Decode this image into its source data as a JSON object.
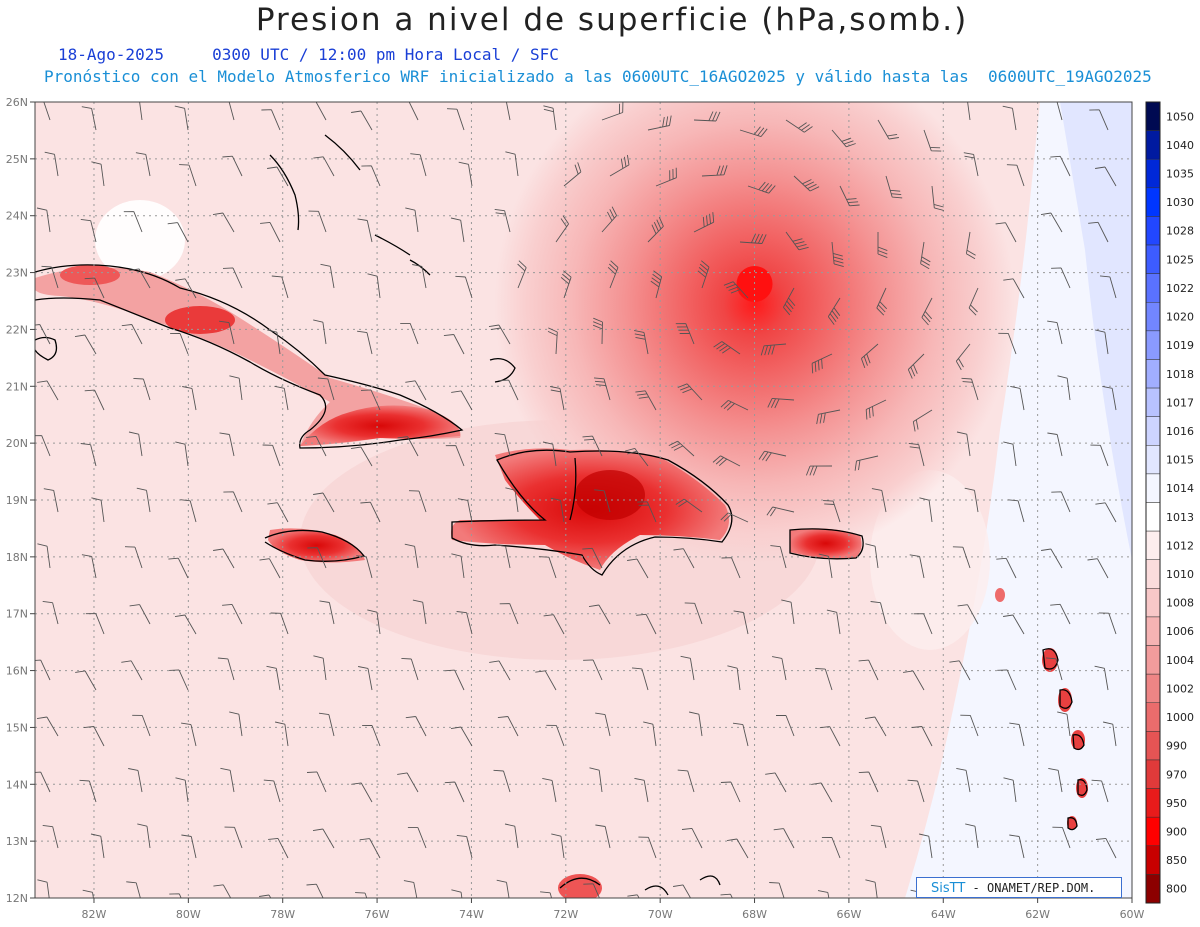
{
  "header": {
    "title": "Presion a nivel de superficie (hPa,somb.)",
    "date": "18-Ago-2025",
    "time_info": "0300 UTC / 12:00 pm Hora Local / SFC",
    "model_info": "Pronóstico con el Modelo Atmosferico WRF inicializado a las 0600UTC_16AGO2025 y válido hasta las  0600UTC_19AGO2025"
  },
  "map": {
    "lon_labels": [
      "82W",
      "80W",
      "78W",
      "76W",
      "74W",
      "72W",
      "70W",
      "68W",
      "66W",
      "64W",
      "62W",
      "60W"
    ],
    "lat_labels": [
      "26N",
      "25N",
      "24N",
      "23N",
      "22N",
      "21N",
      "20N",
      "19N",
      "18N",
      "17N",
      "16N",
      "15N",
      "14N",
      "13N",
      "12N"
    ],
    "lon_range": [
      -83.25,
      -60
    ],
    "lat_range": [
      12,
      26
    ],
    "low_pressure_center": {
      "lon": -68,
      "lat": 22.8
    }
  },
  "colorbar": {
    "levels": [
      "1050",
      "1040",
      "1035",
      "1030",
      "1028",
      "1025",
      "1022",
      "1020",
      "1019",
      "1018",
      "1017",
      "1016",
      "1015",
      "1014",
      "1013",
      "1012",
      "1010",
      "1008",
      "1006",
      "1004",
      "1002",
      "1000",
      "990",
      "970",
      "950",
      "900",
      "850",
      "800"
    ],
    "colors": [
      "#000a52",
      "#001aa0",
      "#0028d8",
      "#0036ff",
      "#2247ff",
      "#3d5cff",
      "#5a72ff",
      "#7286ff",
      "#8a9aff",
      "#a1aeff",
      "#b8c2ff",
      "#cdd4ff",
      "#e1e6ff",
      "#f4f6ff",
      "#ffffff",
      "#fdeeee",
      "#fbdcdc",
      "#f8c8c8",
      "#f5b3b3",
      "#f29c9c",
      "#ee8585",
      "#ea6c6c",
      "#e55454",
      "#e03a3a",
      "#e81b1b",
      "#ff0000",
      "#c80000",
      "#8c0000"
    ]
  },
  "credit": {
    "brand": "SisTT",
    "text": " - ONAMET/REP.DOM."
  }
}
